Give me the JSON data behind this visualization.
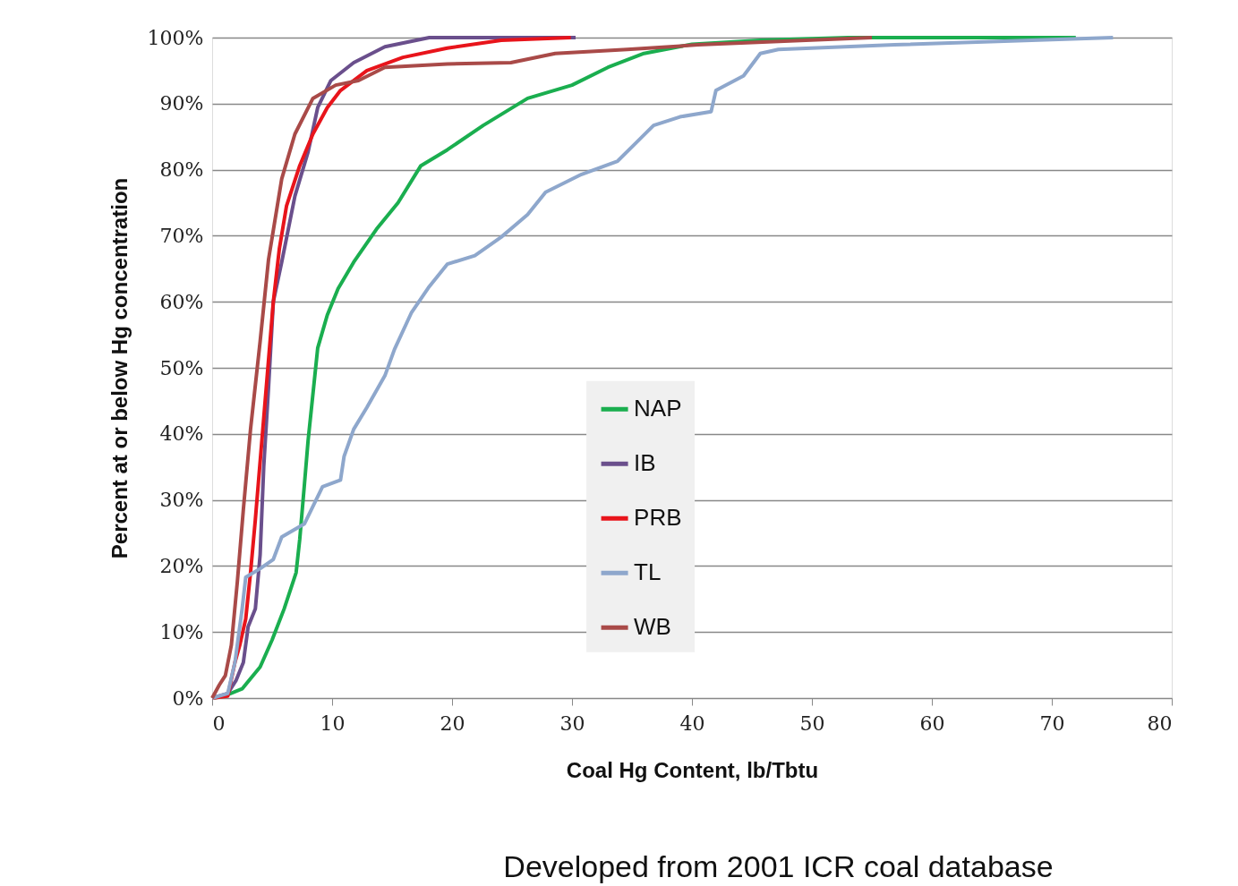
{
  "chart_data": {
    "type": "line",
    "xlabel": "Coal Hg Content, lb/Tbtu",
    "ylabel": "Percent at or below Hg concentration",
    "annotations": [
      "Developed from 2001 ICR coal database"
    ],
    "xlim": [
      0,
      80
    ],
    "xticks": [
      0,
      10,
      20,
      30,
      40,
      50,
      60,
      70,
      80
    ],
    "ylim": [
      0,
      100
    ],
    "yticks": [
      {
        "value": 0,
        "label": "0%"
      },
      {
        "value": 10,
        "label": "10%"
      },
      {
        "value": 20,
        "label": "20%"
      },
      {
        "value": 30,
        "label": "30%"
      },
      {
        "value": 40,
        "label": "40%"
      },
      {
        "value": 50,
        "label": "50%"
      },
      {
        "value": 60,
        "label": "60%"
      },
      {
        "value": 70,
        "label": "70%"
      },
      {
        "value": 80,
        "label": "80%"
      },
      {
        "value": 90,
        "label": "90%"
      },
      {
        "value": 100,
        "label": "100%"
      }
    ],
    "grid": "y",
    "legend": "bottom",
    "marker": "none",
    "line_style": "solid",
    "series": [
      {
        "name": "NAP",
        "color": "#1aae4f",
        "x": [
          0,
          1,
          2.5,
          4,
          5,
          6,
          7,
          7.3,
          7.7,
          8,
          8.4,
          8.8,
          9.6,
          10.5,
          11.8,
          13.7,
          15.5,
          17.4,
          19.6,
          22.6,
          26.3,
          30,
          33,
          36,
          40,
          45.7,
          53,
          72
        ],
        "values": [
          0,
          0.3,
          1.4,
          4.7,
          8.8,
          13.5,
          19,
          24,
          32.5,
          39,
          46,
          53,
          58,
          62,
          66,
          71,
          75,
          80.6,
          83,
          86.7,
          90.8,
          92.8,
          95.5,
          97.6,
          99,
          99.6,
          100,
          100
        ]
      },
      {
        "name": "IB",
        "color": "#6a4f8c",
        "x": [
          0,
          1.3,
          2,
          2.6,
          3,
          3.6,
          4,
          4.3,
          4.7,
          5.1,
          5.8,
          6.9,
          8,
          8.8,
          9.9,
          11.8,
          14.4,
          18.1,
          30.3
        ],
        "values": [
          0,
          0.7,
          2.7,
          5.4,
          10.8,
          13.5,
          21.7,
          35,
          47,
          60,
          66,
          76,
          82.7,
          89.4,
          93.5,
          96.2,
          98.6,
          100,
          100
        ]
      },
      {
        "name": "PRB",
        "color": "#e8141b",
        "x": [
          0,
          1.3,
          1.9,
          2.3,
          2.8,
          3.2,
          3.6,
          4.1,
          4.6,
          5.1,
          5.6,
          6.2,
          7.3,
          8.4,
          9.6,
          10.7,
          12.9,
          15.9,
          19.6,
          24.1,
          29.9
        ],
        "values": [
          0,
          0.3,
          5.4,
          8,
          12,
          19,
          27,
          38,
          49,
          60,
          68,
          74.5,
          80.6,
          85.4,
          89.4,
          92,
          95,
          97,
          98.4,
          99.6,
          100
        ]
      },
      {
        "name": "TL",
        "color": "#8ea7cc",
        "x": [
          0,
          1.3,
          1.9,
          2.5,
          2.8,
          4,
          5.1,
          5.8,
          7.7,
          8.4,
          9.2,
          10.7,
          11,
          11.8,
          12.9,
          14.4,
          15.2,
          16.6,
          18.1,
          19.6,
          21.9,
          24.1,
          26.3,
          27.8,
          30.8,
          33.8,
          35.3,
          36.8,
          39,
          41.6,
          42,
          44.3,
          45.7,
          47.2,
          56.9,
          75.1
        ],
        "values": [
          0,
          0.7,
          5.4,
          13.5,
          18.3,
          19.6,
          21,
          24.4,
          26.4,
          29,
          32,
          33,
          36.6,
          40.7,
          44,
          48.8,
          52.8,
          58.3,
          62.3,
          65.7,
          67,
          69.8,
          73.2,
          76.6,
          79.3,
          81.3,
          84,
          86.7,
          88,
          88.8,
          92,
          94.2,
          97.6,
          98.2,
          98.9,
          100
        ]
      },
      {
        "name": "WB",
        "color": "#a94a48",
        "x": [
          0,
          0.6,
          1.1,
          1.6,
          2.1,
          2.6,
          3.2,
          4,
          4.7,
          5.8,
          6.9,
          8.4,
          10.3,
          12.2,
          14.4,
          19.6,
          24.9,
          28.6,
          34.6,
          40.5,
          49.5,
          55
        ],
        "values": [
          0,
          2,
          3.4,
          8,
          17.6,
          28.5,
          40.7,
          54,
          66.4,
          78.6,
          85.4,
          90.8,
          92.8,
          93.5,
          95.5,
          96,
          96.2,
          97.6,
          98.2,
          98.9,
          99.6,
          100
        ]
      }
    ]
  }
}
